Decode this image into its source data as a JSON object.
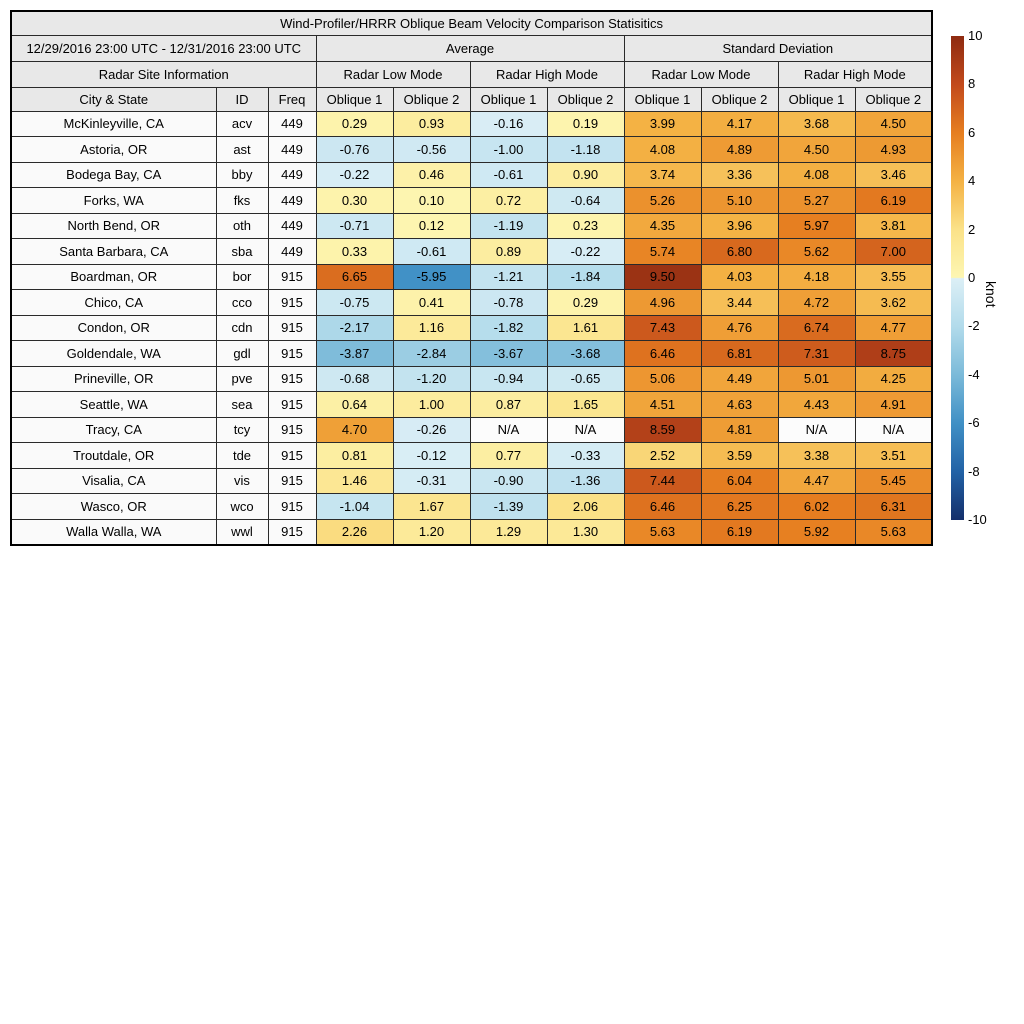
{
  "chart_data": {
    "type": "heatmap",
    "title": "Wind-Profiler/HRRR Oblique Beam Velocity Comparison Statisitics",
    "date_range": "12/29/2016 23:00 UTC - 12/31/2016 23:00 UTC",
    "site_info_label": "Radar Site Information",
    "column_groups": [
      "Average",
      "Standard Deviation"
    ],
    "mode_groups": [
      "Radar Low Mode",
      "Radar High Mode",
      "Radar Low Mode",
      "Radar High Mode"
    ],
    "columns": [
      "City & State",
      "ID",
      "Freq",
      "Oblique 1",
      "Oblique 2",
      "Oblique 1",
      "Oblique 2",
      "Oblique 1",
      "Oblique 2",
      "Oblique 1",
      "Oblique 2"
    ],
    "rows": [
      {
        "city": "McKinleyville, CA",
        "id": "acv",
        "freq": "449",
        "values": [
          "0.29",
          "0.93",
          "-0.16",
          "0.19",
          "3.99",
          "4.17",
          "3.68",
          "4.50"
        ]
      },
      {
        "city": "Astoria, OR",
        "id": "ast",
        "freq": "449",
        "values": [
          "-0.76",
          "-0.56",
          "-1.00",
          "-1.18",
          "4.08",
          "4.89",
          "4.50",
          "4.93"
        ]
      },
      {
        "city": "Bodega Bay, CA",
        "id": "bby",
        "freq": "449",
        "values": [
          "-0.22",
          "0.46",
          "-0.61",
          "0.90",
          "3.74",
          "3.36",
          "4.08",
          "3.46"
        ]
      },
      {
        "city": "Forks, WA",
        "id": "fks",
        "freq": "449",
        "values": [
          "0.30",
          "0.10",
          "0.72",
          "-0.64",
          "5.26",
          "5.10",
          "5.27",
          "6.19"
        ]
      },
      {
        "city": "North Bend, OR",
        "id": "oth",
        "freq": "449",
        "values": [
          "-0.71",
          "0.12",
          "-1.19",
          "0.23",
          "4.35",
          "3.96",
          "5.97",
          "3.81"
        ]
      },
      {
        "city": "Santa Barbara, CA",
        "id": "sba",
        "freq": "449",
        "values": [
          "0.33",
          "-0.61",
          "0.89",
          "-0.22",
          "5.74",
          "6.80",
          "5.62",
          "7.00"
        ]
      },
      {
        "city": "Boardman, OR",
        "id": "bor",
        "freq": "915",
        "values": [
          "6.65",
          "-5.95",
          "-1.21",
          "-1.84",
          "9.50",
          "4.03",
          "4.18",
          "3.55"
        ]
      },
      {
        "city": "Chico, CA",
        "id": "cco",
        "freq": "915",
        "values": [
          "-0.75",
          "0.41",
          "-0.78",
          "0.29",
          "4.96",
          "3.44",
          "4.72",
          "3.62"
        ]
      },
      {
        "city": "Condon, OR",
        "id": "cdn",
        "freq": "915",
        "values": [
          "-2.17",
          "1.16",
          "-1.82",
          "1.61",
          "7.43",
          "4.76",
          "6.74",
          "4.77"
        ]
      },
      {
        "city": "Goldendale, WA",
        "id": "gdl",
        "freq": "915",
        "values": [
          "-3.87",
          "-2.84",
          "-3.67",
          "-3.68",
          "6.46",
          "6.81",
          "7.31",
          "8.75"
        ]
      },
      {
        "city": "Prineville, OR",
        "id": "pve",
        "freq": "915",
        "values": [
          "-0.68",
          "-1.20",
          "-0.94",
          "-0.65",
          "5.06",
          "4.49",
          "5.01",
          "4.25"
        ]
      },
      {
        "city": "Seattle, WA",
        "id": "sea",
        "freq": "915",
        "values": [
          "0.64",
          "1.00",
          "0.87",
          "1.65",
          "4.51",
          "4.63",
          "4.43",
          "4.91"
        ]
      },
      {
        "city": "Tracy, CA",
        "id": "tcy",
        "freq": "915",
        "values": [
          "4.70",
          "-0.26",
          "N/A",
          "N/A",
          "8.59",
          "4.81",
          "N/A",
          "N/A"
        ]
      },
      {
        "city": "Troutdale, OR",
        "id": "tde",
        "freq": "915",
        "values": [
          "0.81",
          "-0.12",
          "0.77",
          "-0.33",
          "2.52",
          "3.59",
          "3.38",
          "3.51"
        ]
      },
      {
        "city": "Visalia, CA",
        "id": "vis",
        "freq": "915",
        "values": [
          "1.46",
          "-0.31",
          "-0.90",
          "-1.36",
          "7.44",
          "6.04",
          "4.47",
          "5.45"
        ]
      },
      {
        "city": "Wasco, OR",
        "id": "wco",
        "freq": "915",
        "values": [
          "-1.04",
          "1.67",
          "-1.39",
          "2.06",
          "6.46",
          "6.25",
          "6.02",
          "6.31"
        ]
      },
      {
        "city": "Walla Walla, WA",
        "id": "wwl",
        "freq": "915",
        "values": [
          "2.26",
          "1.20",
          "1.29",
          "1.30",
          "5.63",
          "6.19",
          "5.92",
          "5.63"
        ]
      }
    ],
    "colorbar": {
      "label": "knot",
      "min": -10,
      "max": 10,
      "ticks": [
        10,
        8,
        6,
        4,
        2,
        0,
        -2,
        -4,
        -6,
        -8,
        -10
      ]
    },
    "colormap": {
      "cold": [
        [
          -10,
          "#142F6B"
        ],
        [
          -8,
          "#2262A6"
        ],
        [
          -6,
          "#4090C5"
        ],
        [
          -4,
          "#7BBAD9"
        ],
        [
          -2,
          "#B2DBEB"
        ],
        [
          0,
          "#DCEFF6"
        ]
      ],
      "warm": [
        [
          0,
          "#FDF6B2"
        ],
        [
          2,
          "#FBE289"
        ],
        [
          4,
          "#F4B244"
        ],
        [
          6,
          "#E67E20"
        ],
        [
          8,
          "#C24A1C"
        ],
        [
          10,
          "#8E2B11"
        ]
      ],
      "na_color": "#FCFCFC",
      "header_bg": "#E8E8E8",
      "info_bg": "#FAFAFA"
    }
  }
}
